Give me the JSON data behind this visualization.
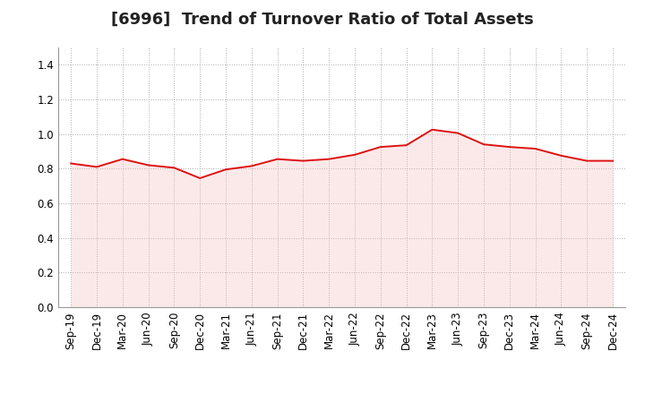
{
  "title": "[6996]  Trend of Turnover Ratio of Total Assets",
  "x_labels": [
    "Sep-19",
    "Dec-19",
    "Mar-20",
    "Jun-20",
    "Sep-20",
    "Dec-20",
    "Mar-21",
    "Jun-21",
    "Sep-21",
    "Dec-21",
    "Mar-22",
    "Jun-22",
    "Sep-22",
    "Dec-22",
    "Mar-23",
    "Jun-23",
    "Sep-23",
    "Dec-23",
    "Mar-24",
    "Jun-24",
    "Sep-24",
    "Dec-24"
  ],
  "y_values": [
    0.83,
    0.81,
    0.855,
    0.82,
    0.805,
    0.745,
    0.795,
    0.815,
    0.855,
    0.845,
    0.855,
    0.88,
    0.925,
    0.935,
    1.025,
    1.005,
    0.94,
    0.925,
    0.915,
    0.875,
    0.845,
    0.845
  ],
  "line_color": "#dd1111",
  "fill_color": "#f5c0c0",
  "ylim": [
    0.0,
    1.5
  ],
  "yticks": [
    0.0,
    0.2,
    0.4,
    0.6,
    0.8,
    1.0,
    1.2,
    1.4
  ],
  "grid_color": "#aaaaaa",
  "background_color": "#ffffff",
  "title_fontsize": 13,
  "tick_fontsize": 8.5,
  "fill_alpha": 0.35
}
